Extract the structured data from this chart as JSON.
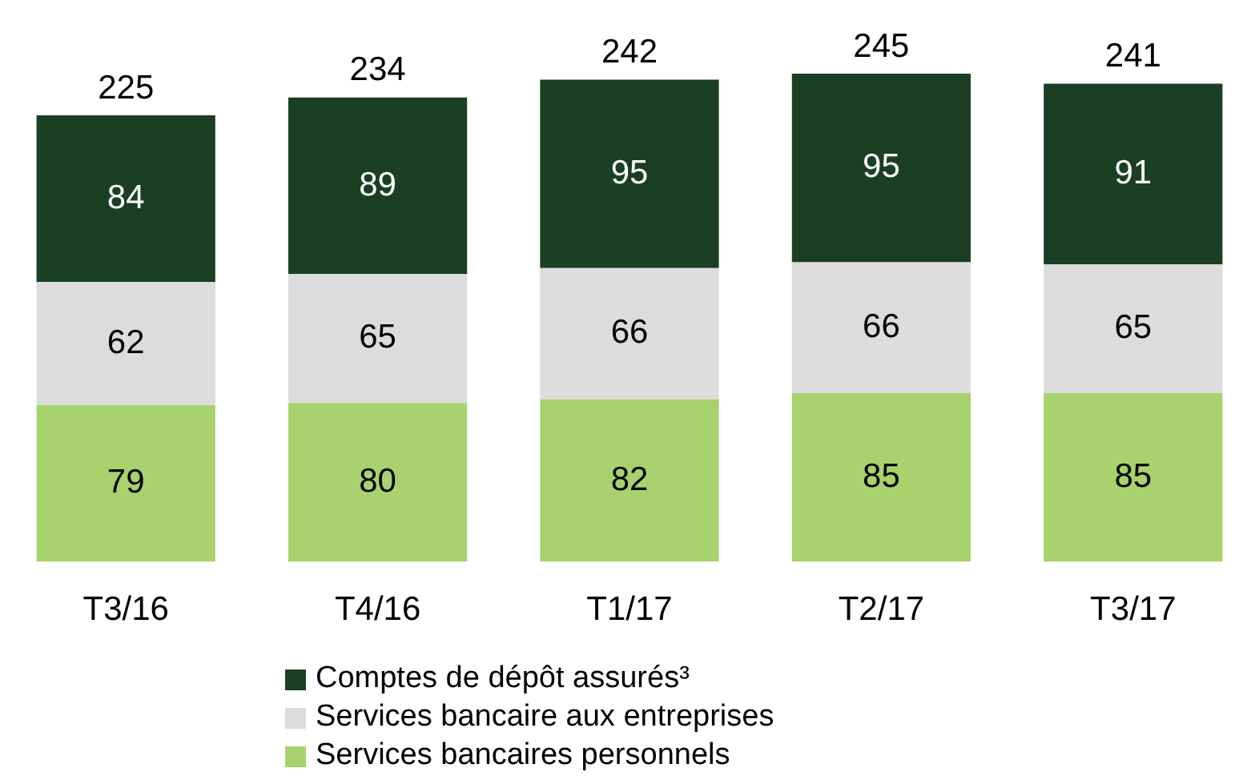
{
  "chart_data": {
    "type": "bar",
    "stacked": true,
    "categories": [
      "T3/16",
      "T4/16",
      "T1/17",
      "T2/17",
      "T3/17"
    ],
    "series": [
      {
        "name": "Services bancaires personnels",
        "color": "#a8d26e",
        "values": [
          79,
          80,
          82,
          85,
          85
        ]
      },
      {
        "name": "Services bancaire aux entreprises",
        "color": "#dcdcdc",
        "values": [
          62,
          65,
          66,
          66,
          65
        ]
      },
      {
        "name": "Comptes de dépôt assurés³",
        "color": "#1a3f22",
        "values": [
          84,
          89,
          95,
          95,
          91
        ]
      }
    ],
    "totals": [
      "225",
      "234",
      "242",
      "245",
      "241"
    ],
    "data_labels": true,
    "legend": "bottom",
    "tick_labels": "x",
    "grid": false
  }
}
